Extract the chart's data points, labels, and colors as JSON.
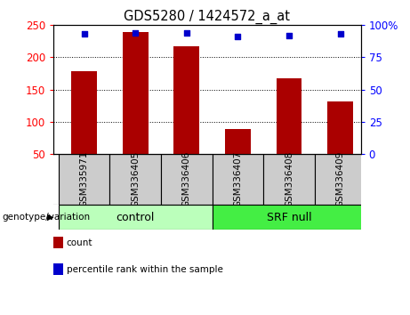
{
  "title": "GDS5280 / 1424572_a_at",
  "categories": [
    "GSM335971",
    "GSM336405",
    "GSM336406",
    "GSM336407",
    "GSM336408",
    "GSM336409"
  ],
  "bar_values": [
    178,
    240,
    217,
    88,
    168,
    131
  ],
  "percentile_values": [
    93,
    94,
    94,
    91,
    92,
    93
  ],
  "bar_color": "#aa0000",
  "dot_color": "#0000cc",
  "ylim_left": [
    50,
    250
  ],
  "ylim_right": [
    0,
    100
  ],
  "yticks_left": [
    50,
    100,
    150,
    200,
    250
  ],
  "yticks_right": [
    0,
    25,
    50,
    75,
    100
  ],
  "yticklabels_right": [
    "0",
    "25",
    "50",
    "75",
    "100%"
  ],
  "gridlines_at": [
    100,
    150,
    200
  ],
  "groups": [
    {
      "label": "control",
      "indices": [
        0,
        1,
        2
      ],
      "color": "#bbffbb"
    },
    {
      "label": "SRF null",
      "indices": [
        3,
        4,
        5
      ],
      "color": "#44ee44"
    }
  ],
  "group_label": "genotype/variation",
  "legend_items": [
    {
      "label": "count",
      "color": "#aa0000"
    },
    {
      "label": "percentile rank within the sample",
      "color": "#0000cc"
    }
  ],
  "bg_color": "#ffffff",
  "plot_bg": "#ffffff",
  "tick_label_bg": "#cccccc",
  "bar_width": 0.5,
  "xlim": [
    -0.6,
    5.4
  ]
}
